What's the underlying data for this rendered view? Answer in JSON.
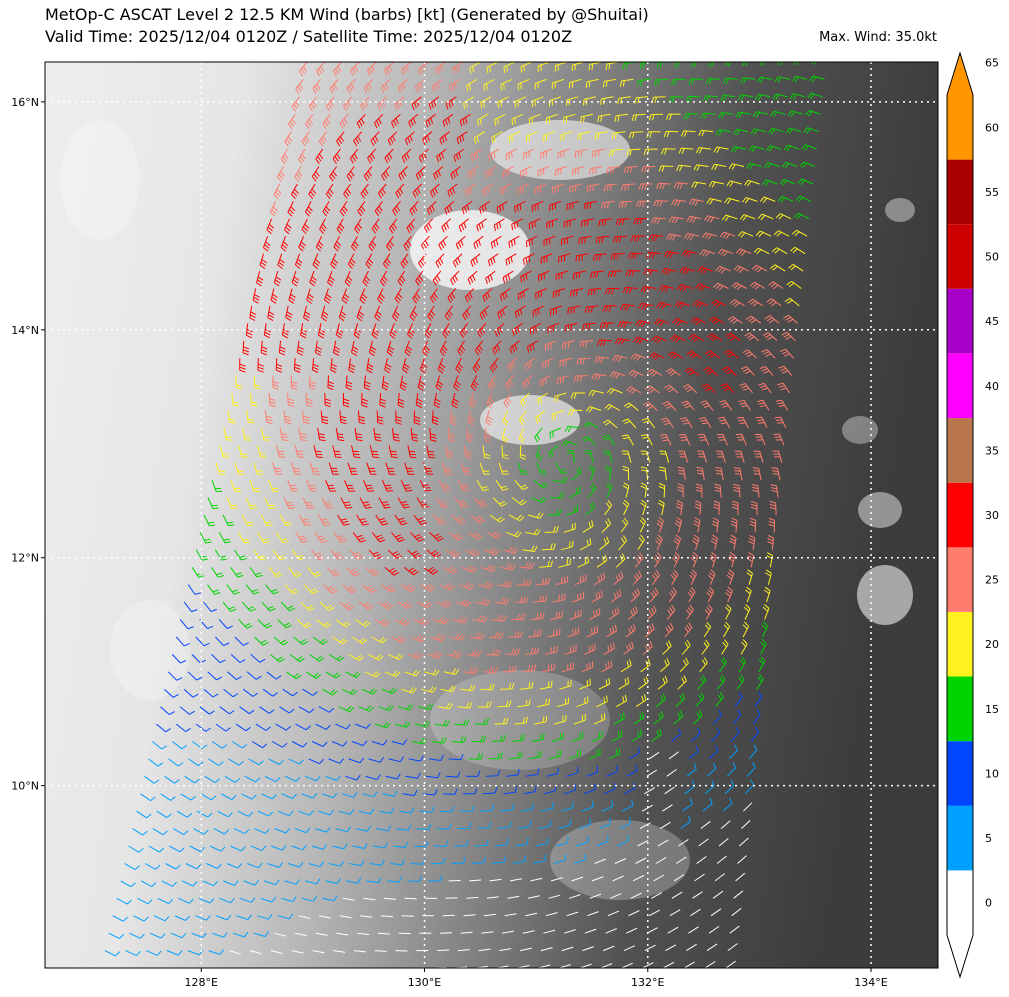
{
  "title": {
    "line1": "MetOp-C ASCAT Level 2 12.5 KM Wind (barbs) [kt] (Generated by @Shuitai)",
    "line2": "Valid Time: 2025/12/04 0120Z / Satellite Time: 2025/12/04 0120Z",
    "max_wind": "Max. Wind: 35.0kt"
  },
  "map": {
    "lon_range": [
      126.6,
      134.6
    ],
    "lat_range": [
      8.4,
      16.35
    ],
    "lon_ticks": [
      {
        "value": 128,
        "label": "128°E"
      },
      {
        "value": 130,
        "label": "130°E"
      },
      {
        "value": 132,
        "label": "132°E"
      },
      {
        "value": 134,
        "label": "134°E"
      }
    ],
    "lat_ticks": [
      {
        "value": 16,
        "label": "16°N"
      },
      {
        "value": 14,
        "label": "14°N"
      },
      {
        "value": 12,
        "label": "12°N"
      },
      {
        "value": 10,
        "label": "10°N"
      }
    ],
    "gridlines": "dotted white",
    "storm_center": {
      "lon": 131.25,
      "lat": 12.85
    },
    "swath_corners_lonlat": [
      [
        128.95,
        16.35
      ],
      [
        133.6,
        16.35
      ],
      [
        132.7,
        8.4
      ],
      [
        127.1,
        8.4
      ]
    ]
  },
  "colorbar": {
    "unit": "kt",
    "extend": "both",
    "labels": [
      "0",
      "5",
      "10",
      "15",
      "20",
      "25",
      "30",
      "35",
      "40",
      "45",
      "50",
      "55",
      "60",
      "65"
    ],
    "bins": [
      {
        "min": 0,
        "max": 5,
        "color": "#ffffff"
      },
      {
        "min": 5,
        "max": 10,
        "color": "#00a0ff"
      },
      {
        "min": 10,
        "max": 15,
        "color": "#0046ff"
      },
      {
        "min": 15,
        "max": 20,
        "color": "#00d400"
      },
      {
        "min": 20,
        "max": 25,
        "color": "#fff21e"
      },
      {
        "min": 25,
        "max": 30,
        "color": "#ff7c6e"
      },
      {
        "min": 30,
        "max": 35,
        "color": "#ff0000"
      },
      {
        "min": 35,
        "max": 40,
        "color": "#b8764a"
      },
      {
        "min": 40,
        "max": 45,
        "color": "#ff00ff"
      },
      {
        "min": 45,
        "max": 50,
        "color": "#a800c8"
      },
      {
        "min": 50,
        "max": 55,
        "color": "#cc0000"
      },
      {
        "min": 55,
        "max": 60,
        "color": "#a80000"
      }
    ],
    "over_color": "#ff9600",
    "under_color": "#ffffff"
  }
}
